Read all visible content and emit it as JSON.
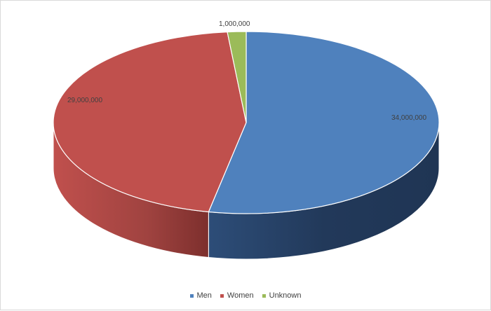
{
  "chart_data": {
    "type": "pie",
    "variant": "3d",
    "title": "",
    "legend_position": "bottom",
    "categories": [
      "Men",
      "Women",
      "Unknown"
    ],
    "values": [
      34000000,
      29000000,
      1000000
    ],
    "data_labels": [
      "34,000,000",
      "29,000,000",
      "1,000,000"
    ],
    "colors": [
      "#4f81bd",
      "#c0504d",
      "#9bbb59"
    ],
    "side_colors": [
      "#1f3554",
      "#7d2f2d",
      "#647c37"
    ]
  },
  "legend": {
    "items": [
      {
        "label": "Men",
        "color": "#4f81bd"
      },
      {
        "label": "Women",
        "color": "#c0504d"
      },
      {
        "label": "Unknown",
        "color": "#9bbb59"
      }
    ]
  }
}
